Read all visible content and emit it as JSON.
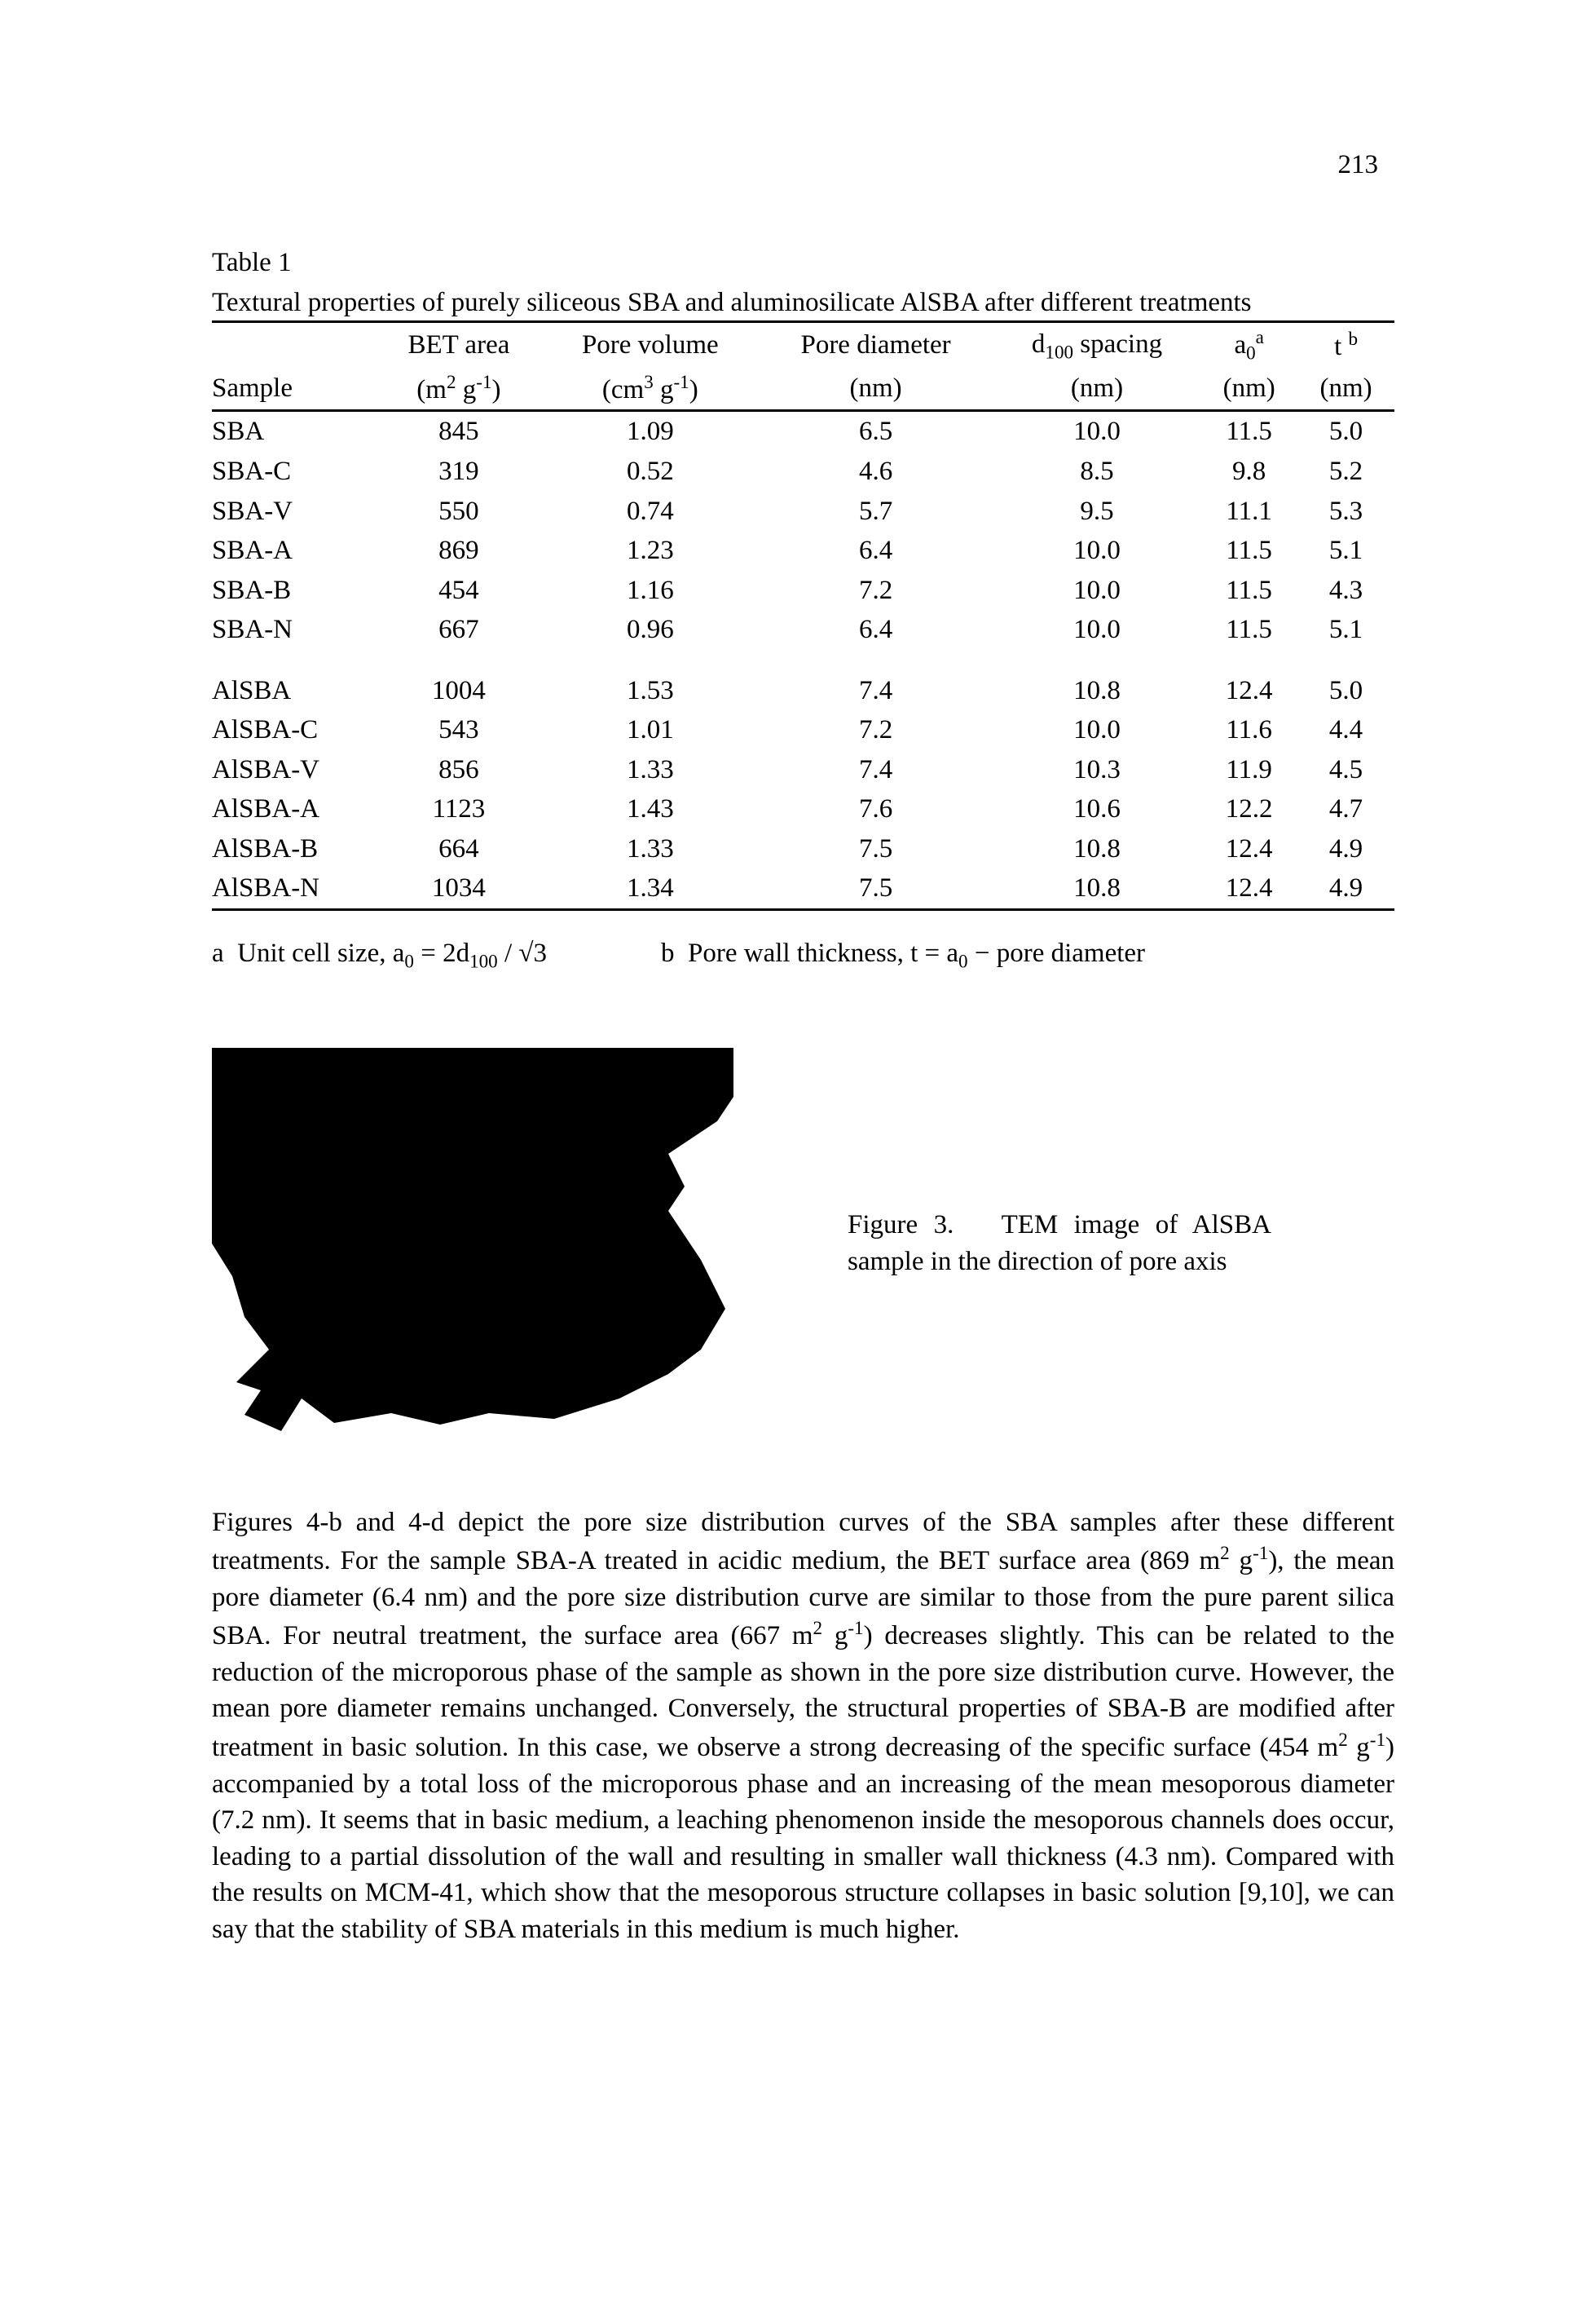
{
  "page_number": "213",
  "table": {
    "label": "Table 1",
    "caption": "Textural properties of purely siliceous SBA and aluminosilicate AlSBA after different treatments",
    "columns": [
      {
        "line1_html": "",
        "line2_html": "Sample"
      },
      {
        "line1_html": "BET area",
        "line2_html": "(m<sup>2</sup> g<sup>-1</sup>)"
      },
      {
        "line1_html": "Pore volume",
        "line2_html": "(cm<sup>3</sup> g<sup>-1</sup>)"
      },
      {
        "line1_html": "Pore diameter",
        "line2_html": "(nm)"
      },
      {
        "line1_html": "d<sub>100</sub> spacing",
        "line2_html": "(nm)"
      },
      {
        "line1_html": "a<sub>0</sub><sup>a</sup>",
        "line2_html": "(nm)"
      },
      {
        "line1_html": "t <sup>b</sup>",
        "line2_html": "(nm)"
      }
    ],
    "groups": [
      {
        "rows": [
          [
            "SBA",
            "845",
            "1.09",
            "6.5",
            "10.0",
            "11.5",
            "5.0"
          ],
          [
            "SBA-C",
            "319",
            "0.52",
            "4.6",
            "8.5",
            "9.8",
            "5.2"
          ],
          [
            "SBA-V",
            "550",
            "0.74",
            "5.7",
            "9.5",
            "11.1",
            "5.3"
          ],
          [
            "SBA-A",
            "869",
            "1.23",
            "6.4",
            "10.0",
            "11.5",
            "5.1"
          ],
          [
            "SBA-B",
            "454",
            "1.16",
            "7.2",
            "10.0",
            "11.5",
            "4.3"
          ],
          [
            "SBA-N",
            "667",
            "0.96",
            "6.4",
            "10.0",
            "11.5",
            "5.1"
          ]
        ]
      },
      {
        "rows": [
          [
            "AlSBA",
            "1004",
            "1.53",
            "7.4",
            "10.8",
            "12.4",
            "5.0"
          ],
          [
            "AlSBA-C",
            "543",
            "1.01",
            "7.2",
            "10.0",
            "11.6",
            "4.4"
          ],
          [
            "AlSBA-V",
            "856",
            "1.33",
            "7.4",
            "10.3",
            "11.9",
            "4.5"
          ],
          [
            "AlSBA-A",
            "1123",
            "1.43",
            "7.6",
            "10.6",
            "12.2",
            "4.7"
          ],
          [
            "AlSBA-B",
            "664",
            "1.33",
            "7.5",
            "10.8",
            "12.4",
            "4.9"
          ],
          [
            "AlSBA-N",
            "1034",
            "1.34",
            "7.5",
            "10.8",
            "12.4",
            "4.9"
          ]
        ]
      }
    ],
    "footnote_a_html": "a&nbsp;&nbsp;Unit cell size, a<sub>0</sub> = 2d<sub>100</sub> / &radic;3",
    "footnote_b_html": "b&nbsp;&nbsp;Pore wall thickness, t = a<sub>0</sub> &minus; pore diameter"
  },
  "figure": {
    "caption_html": "Figure&nbsp;3.&nbsp;&nbsp;&nbsp;TEM image of AlSBA sample in the direction of pore axis"
  },
  "body_html": "Figures 4-b and 4-d depict the pore size distribution curves of the SBA samples after these different treatments. For the sample SBA-A treated in acidic medium, the BET surface area (869 m<sup>2</sup> g<sup>-1</sup>), the mean pore diameter (6.4 nm) and the pore size distribution curve are similar to those from the pure parent silica SBA. For neutral treatment, the surface area (667 m<sup>2</sup> g<sup>-1</sup>) decreases slightly. This can be related to the reduction of the microporous phase of the sample as shown in the pore size distribution curve. However, the mean pore diameter remains unchanged. Conversely, the structural properties of SBA-B are modified after treatment in basic solution. In this case, we observe a strong decreasing of the specific surface (454 m<sup>2</sup> g<sup>-1</sup>) accompanied by a total loss of the microporous phase and an increasing of the mean mesoporous diameter (7.2 nm). It seems that in basic medium, a leaching phenomenon inside the mesoporous channels does occur, leading to a partial dissolution of the wall and resulting in smaller wall thickness (4.3 nm). Compared with the results on MCM-41, which show that the mesoporous structure collapses in basic solution [9,10], we can say that the stability of SBA materials in this medium is much higher."
}
